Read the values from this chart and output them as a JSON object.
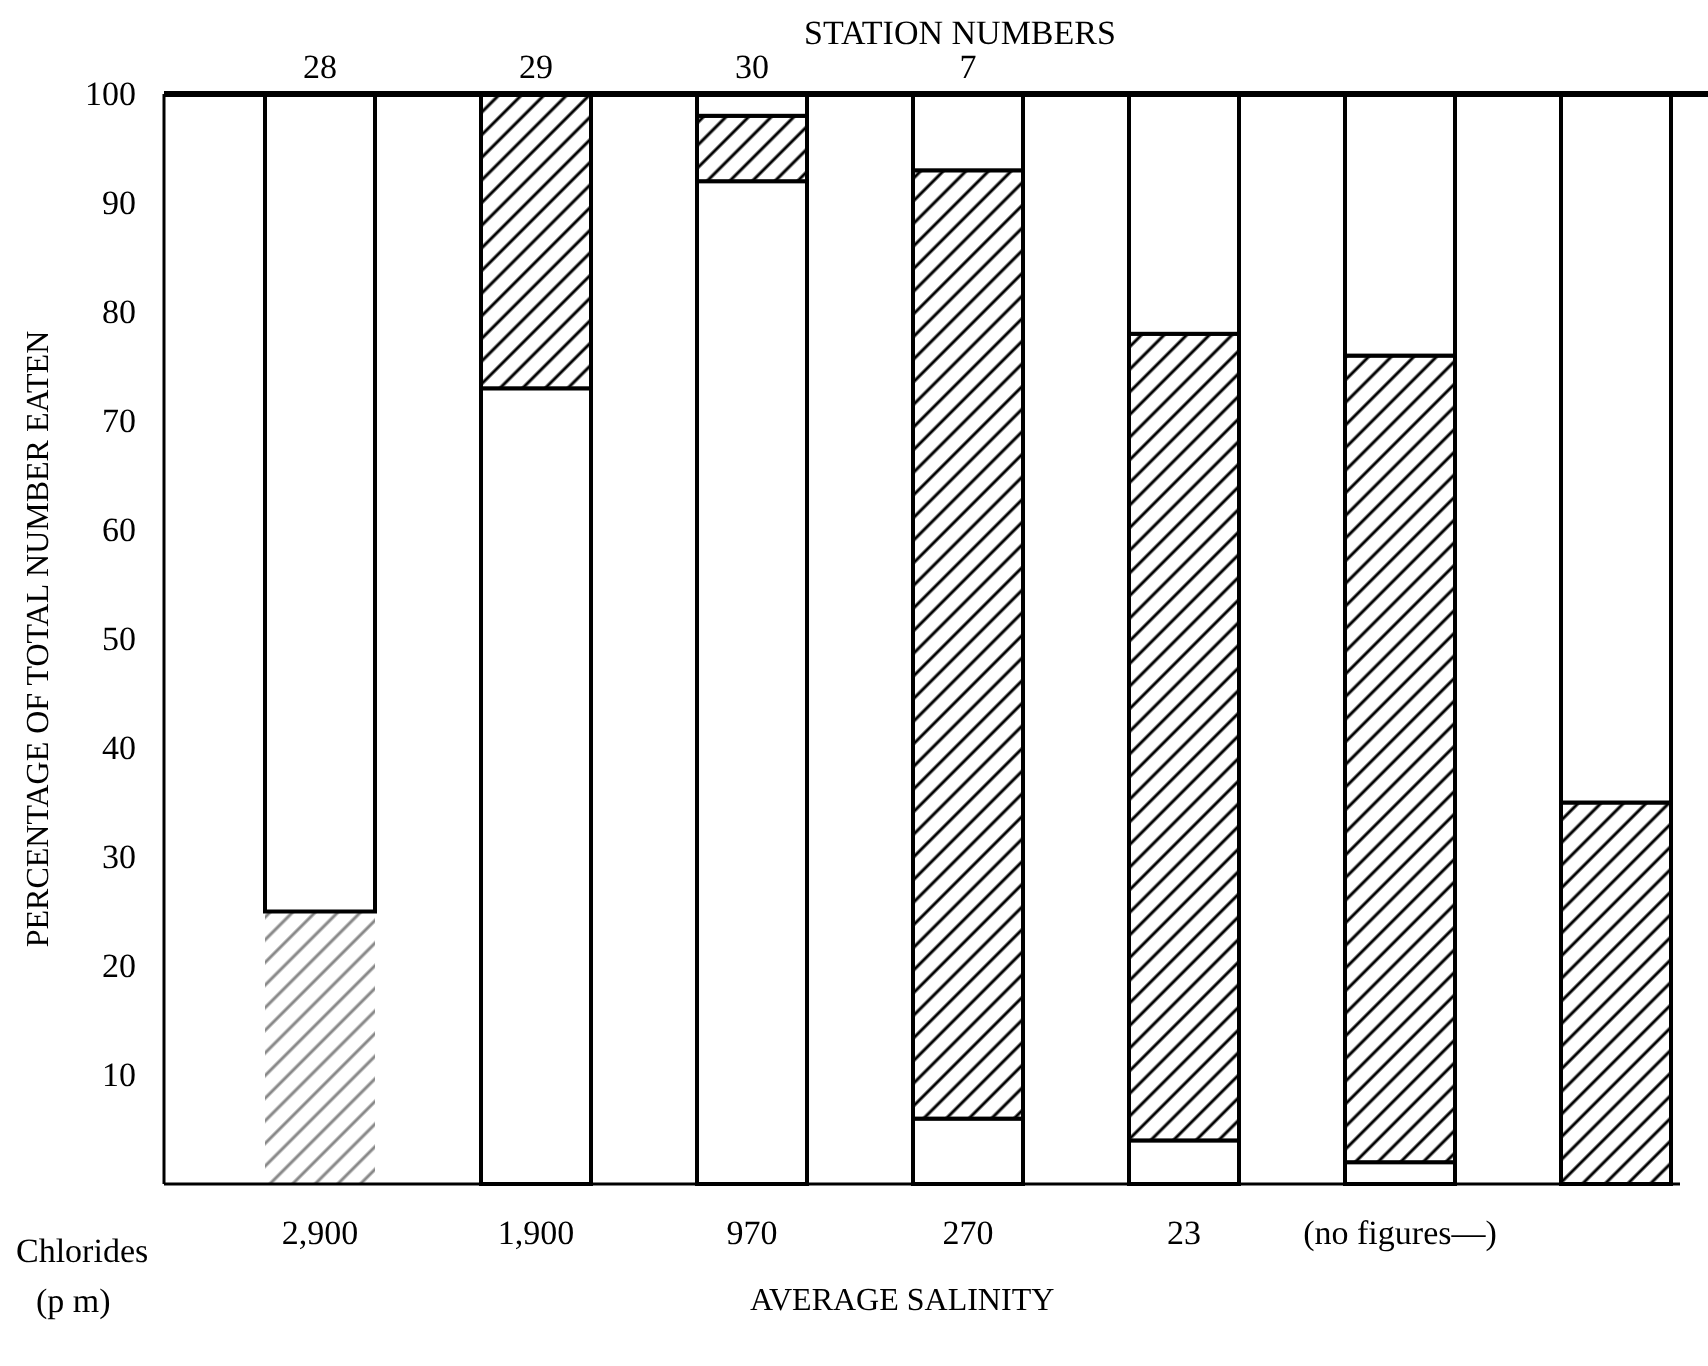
{
  "chart_data": {
    "type": "bar",
    "stacked": true,
    "ylabel": "PERCENTAGE OF TOTAL NUMBER EATEN",
    "xlabel": "AVERAGE SALINITY",
    "categories": [
      "2,900",
      "1,900",
      "970",
      "270",
      "23",
      "(no figures—)",
      null
    ],
    "ylim": [
      0,
      100
    ],
    "yticks": [
      10,
      20,
      30,
      40,
      50,
      60,
      70,
      80,
      90,
      100
    ],
    "series": [
      {
        "color": "#888888",
        "values": [
          25,
          0,
          0,
          0,
          0,
          0,
          0
        ]
      },
      {
        "color": "#ffffff",
        "values": [
          75,
          73,
          92,
          6,
          4,
          2,
          0
        ]
      },
      {
        "color": "#000000",
        "values": [
          0,
          27,
          6,
          87,
          74,
          74,
          35
        ]
      },
      {
        "color": "#ffffff",
        "values": [
          0,
          0,
          2,
          7,
          22,
          24,
          65
        ]
      }
    ],
    "annotations": [
      "STATION NUMBERS",
      {
        "text": "28",
        "x": "2,900",
        "y": 100
      },
      {
        "text": "29",
        "x": "1,900",
        "y": 100
      },
      {
        "text": "30",
        "x": "970",
        "y": 100
      },
      {
        "text": "7",
        "x": "270",
        "y": 100
      },
      "Chlorides",
      "(p m)"
    ]
  }
}
